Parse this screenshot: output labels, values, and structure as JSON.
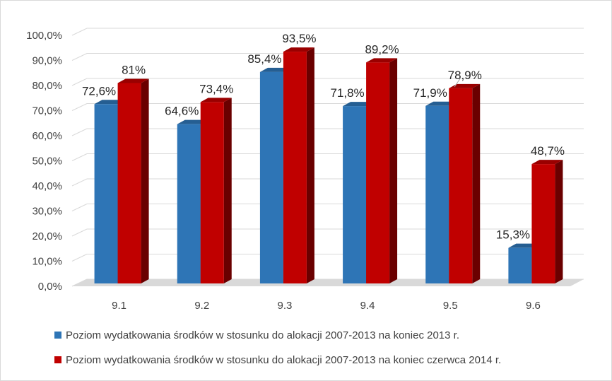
{
  "chart_data": {
    "type": "bar",
    "categories": [
      "9.1",
      "9.2",
      "9.3",
      "9.4",
      "9.5",
      "9.6"
    ],
    "series": [
      {
        "name": "Poziom wydatkowania środków w stosunku do alokacji 2007-2013 na koniec 2013 r.",
        "values": [
          72.6,
          64.6,
          85.4,
          71.8,
          71.9,
          15.3
        ],
        "labels": [
          "72,6%",
          "64,6%",
          "85,4%",
          "71,8%",
          "71,9%",
          "15,3%"
        ],
        "color": "#2e75b6"
      },
      {
        "name": "Poziom wydatkowania środków w stosunku do alokacji 2007-2013 na koniec czerwca 2014 r.",
        "values": [
          81,
          73.4,
          93.5,
          89.2,
          78.9,
          48.7
        ],
        "labels": [
          "81%",
          "73,4%",
          "93,5%",
          "89,2%",
          "78,9%",
          "48,7%"
        ],
        "color": "#c00000"
      }
    ],
    "y_ticks": [
      "0,0%",
      "10,0%",
      "20,0%",
      "30,0%",
      "40,0%",
      "50,0%",
      "60,0%",
      "70,0%",
      "80,0%",
      "90,0%",
      "100,0%"
    ],
    "ylim": [
      0,
      100
    ],
    "grid": true,
    "legend_position": "bottom",
    "style": "3d-clustered-column"
  }
}
